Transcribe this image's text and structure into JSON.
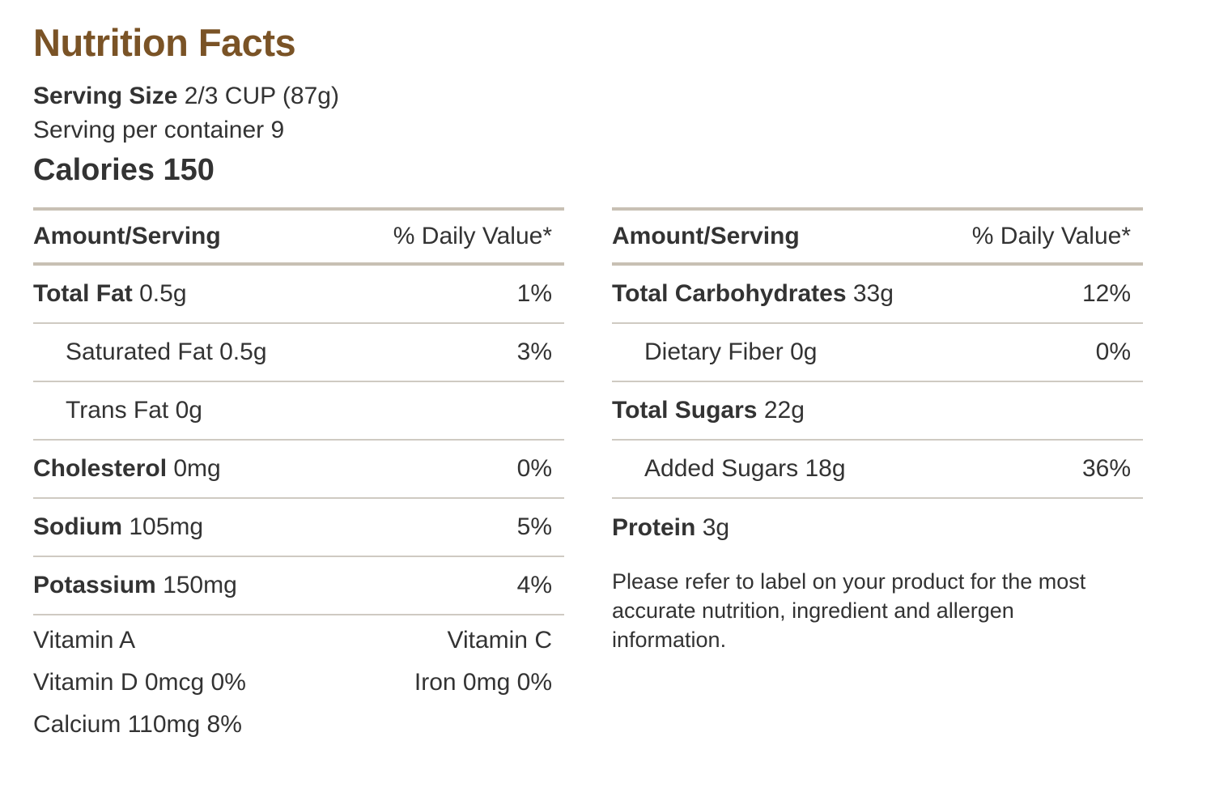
{
  "title": "Nutrition Facts",
  "serving": {
    "size_label": "Serving Size",
    "size_value": "2/3 CUP (87g)",
    "per_container": "Serving per container 9",
    "calories": "Calories 150"
  },
  "columns": {
    "amount_header": "Amount/Serving",
    "dv_header": "% Daily Value*"
  },
  "left_rows": [
    {
      "name": "Total Fat",
      "amount": "0.5g",
      "dv": "1%"
    },
    {
      "name": "Saturated Fat",
      "amount": "0.5g",
      "dv": "3%"
    },
    {
      "name": "Trans Fat",
      "amount": "0g",
      "dv": ""
    },
    {
      "name": "Cholesterol",
      "amount": "0mg",
      "dv": "0%"
    },
    {
      "name": "Sodium",
      "amount": "105mg",
      "dv": "5%"
    },
    {
      "name": "Potassium",
      "amount": "150mg",
      "dv": "4%"
    }
  ],
  "vitamins": {
    "vitamin_a": "Vitamin A",
    "vitamin_c": "Vitamin C",
    "vitamin_d": "Vitamin D 0mcg 0%",
    "iron": "Iron 0mg 0%",
    "calcium": "Calcium 110mg 8%"
  },
  "right_rows": [
    {
      "name": "Total Carbohydrates",
      "amount": "33g",
      "dv": "12%"
    },
    {
      "name": "Dietary Fiber",
      "amount": "0g",
      "dv": "0%"
    },
    {
      "name": "Total Sugars",
      "amount": "22g",
      "dv": ""
    },
    {
      "name": "Added Sugars",
      "amount": "18g",
      "dv": "36%"
    },
    {
      "name": "Protein",
      "amount": "3g",
      "dv": ""
    }
  ],
  "disclaimer": "Please refer to label on your product for the most accurate nutrition, ingredient and allergen information.",
  "colors": {
    "title": "#7a5326",
    "text": "#333333",
    "rule": "#c8c0b4"
  }
}
